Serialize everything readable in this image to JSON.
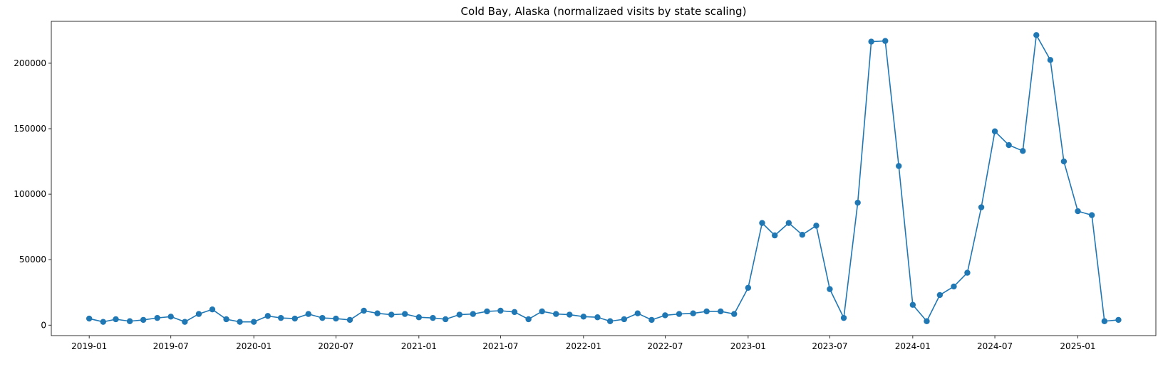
{
  "chart_data": {
    "type": "line",
    "title": "Cold Bay, Alaska (normalizaed visits by state scaling)",
    "xlabel": "",
    "ylabel": "",
    "marker": "circle",
    "color": "#1f77b4",
    "grid": false,
    "legend": false,
    "xlim": [
      "2018-10-09",
      "2025-06-23"
    ],
    "ylim": [
      -8000,
      232000
    ],
    "x_ticks": [
      "2019-01",
      "2019-07",
      "2020-01",
      "2020-07",
      "2021-01",
      "2021-07",
      "2022-01",
      "2022-07",
      "2023-01",
      "2023-07",
      "2024-01",
      "2024-07",
      "2025-01"
    ],
    "y_ticks": [
      0,
      50000,
      100000,
      150000,
      200000
    ],
    "series": [
      {
        "x": [
          "2019-01",
          "2019-02",
          "2019-03",
          "2019-04",
          "2019-05",
          "2019-06",
          "2019-07",
          "2019-08",
          "2019-09",
          "2019-10",
          "2019-11",
          "2019-12",
          "2020-01",
          "2020-02",
          "2020-03",
          "2020-04",
          "2020-05",
          "2020-06",
          "2020-07",
          "2020-08",
          "2020-09",
          "2020-10",
          "2020-11",
          "2020-12",
          "2021-01",
          "2021-02",
          "2021-03",
          "2021-04",
          "2021-05",
          "2021-06",
          "2021-07",
          "2021-08",
          "2021-09",
          "2021-10",
          "2021-11",
          "2021-12",
          "2022-01",
          "2022-02",
          "2022-03",
          "2022-04",
          "2022-05",
          "2022-06",
          "2022-07",
          "2022-08",
          "2022-09",
          "2022-10",
          "2022-11",
          "2022-12",
          "2023-01",
          "2023-02",
          "2023-03",
          "2023-04",
          "2023-05",
          "2023-06",
          "2023-07",
          "2023-08",
          "2023-09",
          "2023-10",
          "2023-11",
          "2023-12",
          "2024-01",
          "2024-02",
          "2024-03",
          "2024-04",
          "2024-05",
          "2024-06",
          "2024-07",
          "2024-08",
          "2024-09",
          "2024-10",
          "2024-11",
          "2024-12",
          "2025-01",
          "2025-02",
          "2025-03",
          "2025-04"
        ],
        "y": [
          5000,
          2500,
          4500,
          3000,
          4000,
          5500,
          6500,
          2500,
          8500,
          12000,
          4500,
          2500,
          2500,
          7000,
          5500,
          5000,
          8500,
          5500,
          5000,
          4000,
          11000,
          9000,
          8000,
          8500,
          6000,
          5500,
          4500,
          8000,
          8500,
          10500,
          11000,
          10000,
          4500,
          10500,
          8500,
          8000,
          6500,
          6000,
          3000,
          4500,
          9000,
          4000,
          7500,
          8500,
          9000,
          10500,
          10500,
          8500,
          28500,
          78000,
          68500,
          78000,
          69000,
          76000,
          27500,
          5500,
          93500,
          216500,
          217000,
          121500,
          15500,
          3000,
          23000,
          29500,
          40000,
          90000,
          148000,
          137500,
          133000,
          221500,
          202500,
          125000,
          87000,
          84000,
          3000,
          4000
        ]
      }
    ]
  }
}
